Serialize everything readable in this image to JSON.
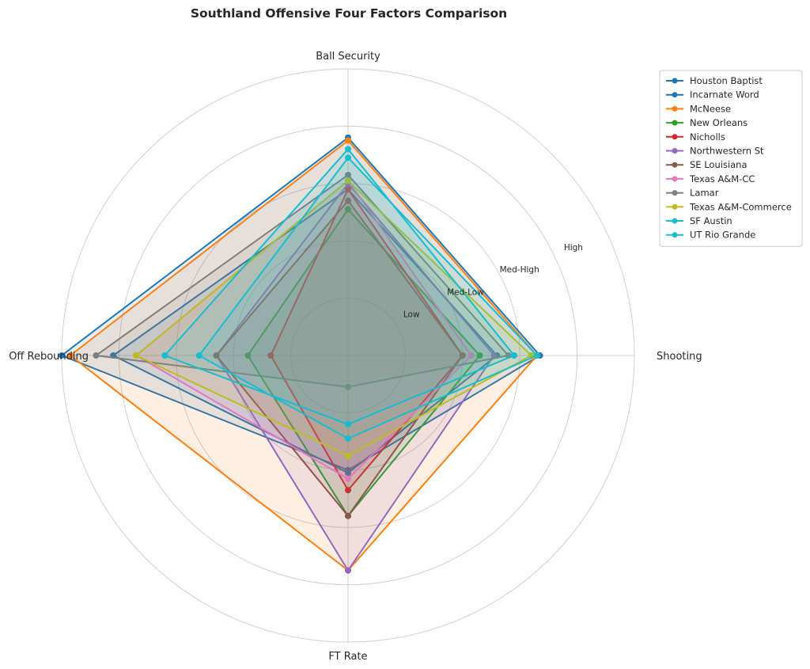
{
  "chart_data": {
    "type": "radar",
    "title": "Southland Offensive Four Factors Comparison",
    "axes": [
      "Ball Security",
      "Shooting",
      "FT Rate",
      "Off Rebounding"
    ],
    "range": [
      0,
      1
    ],
    "rings": [
      {
        "value": 0.2,
        "label": "Low"
      },
      {
        "value": 0.4,
        "label": "Med-Low"
      },
      {
        "value": 0.6,
        "label": "Med-High"
      },
      {
        "value": 0.8,
        "label": "High"
      },
      {
        "value": 1.0,
        "label": ""
      }
    ],
    "grid": true,
    "legend": "top-right",
    "series": [
      {
        "name": "Houston Baptist",
        "color": "#1f77b4",
        "values": [
          0.76,
          0.67,
          0.4,
          1.0
        ]
      },
      {
        "name": "Incarnate Word",
        "color": "#1f77b4",
        "values": [
          0.58,
          0.52,
          0.41,
          0.82
        ]
      },
      {
        "name": "McNeese",
        "color": "#ff7f0e",
        "values": [
          0.75,
          0.66,
          0.75,
          0.97
        ]
      },
      {
        "name": "New Orleans",
        "color": "#2ca02c",
        "values": [
          0.51,
          0.46,
          0.56,
          0.35
        ]
      },
      {
        "name": "Nicholls",
        "color": "#d62728",
        "values": [
          0.58,
          0.4,
          0.47,
          0.27
        ]
      },
      {
        "name": "Northwestern St",
        "color": "#9467bd",
        "values": [
          0.6,
          0.51,
          0.75,
          0.46
        ]
      },
      {
        "name": "SE Louisiana",
        "color": "#8c564b",
        "values": [
          0.54,
          0.4,
          0.56,
          0.46
        ]
      },
      {
        "name": "Texas A&M-CC",
        "color": "#e377c2",
        "values": [
          0.61,
          0.43,
          0.43,
          0.74
        ]
      },
      {
        "name": "Lamar",
        "color": "#7f7f7f",
        "values": [
          0.63,
          0.56,
          0.11,
          0.88
        ]
      },
      {
        "name": "Texas A&M-Commerce",
        "color": "#bcbd22",
        "values": [
          0.61,
          0.64,
          0.35,
          0.74
        ]
      },
      {
        "name": "SF Austin",
        "color": "#17becf",
        "values": [
          0.72,
          0.58,
          0.24,
          0.64
        ]
      },
      {
        "name": "UT Rio Grande",
        "color": "#17becf",
        "values": [
          0.69,
          0.66,
          0.29,
          0.52
        ]
      }
    ]
  }
}
